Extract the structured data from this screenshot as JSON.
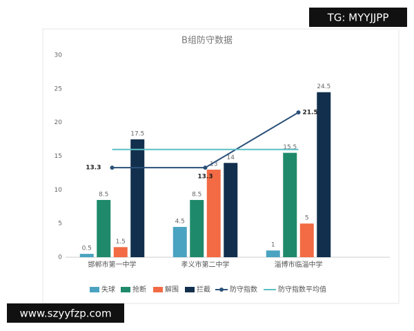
{
  "chart_data": {
    "type": "bar",
    "title": "B组防守数据",
    "categories": [
      "邯郸市第一中学",
      "孝义市第二中学",
      "淄博市临淄中学"
    ],
    "series": [
      {
        "name": "失球",
        "color": "#4aa3c0",
        "type": "bar",
        "data_labels": true,
        "values": [
          0.5,
          4.5,
          1
        ]
      },
      {
        "name": "抢断",
        "color": "#1f8a6b",
        "type": "bar",
        "data_labels": true,
        "values": [
          8.5,
          8.5,
          15.5
        ]
      },
      {
        "name": "解围",
        "color": "#f26b44",
        "type": "bar",
        "data_labels": true,
        "values": [
          1.5,
          13,
          5
        ]
      },
      {
        "name": "拦截",
        "color": "#12304d",
        "type": "bar",
        "data_labels": true,
        "values": [
          17.5,
          14,
          24.5
        ]
      },
      {
        "name": "防守指数",
        "color": "#2b5179",
        "type": "line",
        "data_labels": true,
        "values": [
          13.3,
          13.3,
          21.5
        ]
      },
      {
        "name": "防守指数平均值",
        "color": "#5bbfc6",
        "type": "line",
        "data_labels": false,
        "values": [
          16,
          16,
          16
        ]
      }
    ],
    "ylim": [
      0,
      30
    ],
    "yticks": [
      0,
      5,
      10,
      15,
      20,
      25,
      30
    ],
    "grid": false,
    "legend": "bottom"
  },
  "watermarks": [
    "TG: MYYJJPP",
    "www.szyyfzp.com"
  ]
}
